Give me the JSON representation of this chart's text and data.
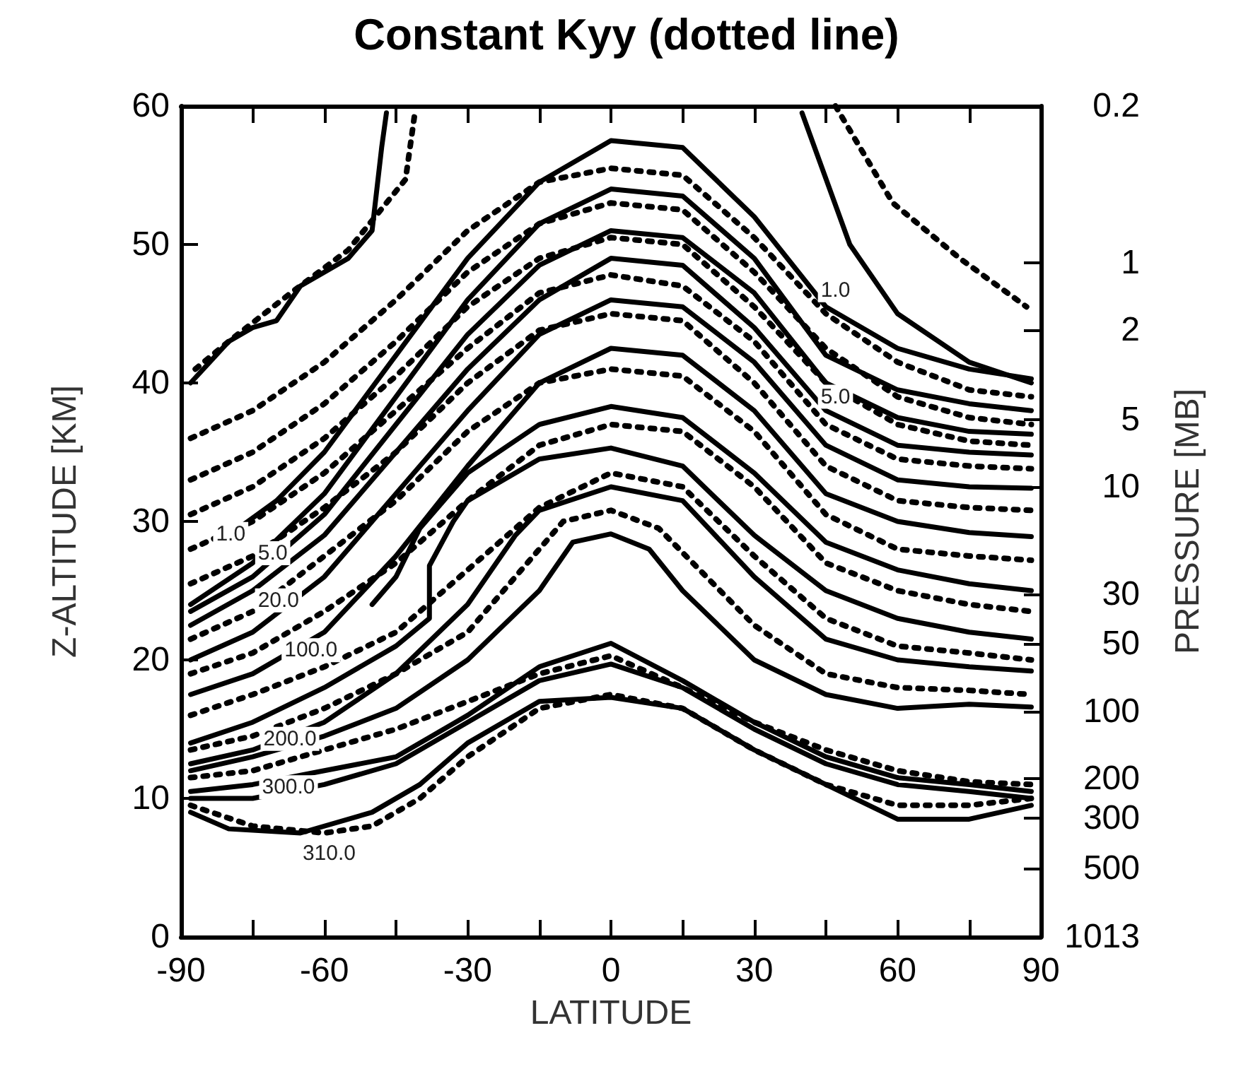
{
  "chart_data": {
    "type": "line",
    "title": "Constant Kyy (dotted line)",
    "xlabel": "LATITUDE",
    "ylabel": "Z-ALTITUDE [KM]",
    "y2label": "PRESSURE [MB]",
    "xlim": [
      -90,
      90
    ],
    "xticks": [
      -90,
      {
        "value": -75,
        "label": null
      },
      -60,
      {
        "value": -45,
        "label": null
      },
      -30,
      {
        "value": -15,
        "label": null
      },
      0,
      {
        "value": 15,
        "label": null
      },
      30,
      {
        "value": 45,
        "label": null
      },
      60,
      {
        "value": 75,
        "label": null
      },
      90
    ],
    "ylim": [
      0,
      60
    ],
    "yticks": [
      0,
      10,
      20,
      30,
      40,
      50,
      60
    ],
    "y2lim": [
      1013,
      0.2
    ],
    "y2ticks": [
      0.2,
      1,
      2,
      5,
      10,
      30,
      50,
      100,
      200,
      300,
      500,
      1013
    ],
    "log": "y2",
    "grid": false,
    "marker": "none",
    "series": [
      {
        "color": "#000000",
        "line_style": "solid",
        "x": [
          -88,
          -80,
          -75,
          -70,
          -65,
          -55,
          -50,
          -48,
          -47
        ],
        "values": [
          40,
          43,
          44,
          44.5,
          47,
          49,
          51,
          57,
          59.5
        ]
      },
      {
        "color": "#000000",
        "line_style": "solid",
        "x": [
          40,
          50,
          60,
          75,
          88
        ],
        "values": [
          59.5,
          50,
          45,
          41.5,
          40
        ]
      },
      {
        "color": "#000000",
        "line_style": "solid",
        "x": [
          -80,
          -70,
          -60,
          -45,
          -30,
          -15,
          0,
          15,
          30,
          45,
          60,
          75,
          88
        ],
        "values": [
          29,
          31.5,
          35,
          42,
          49,
          54.5,
          57.5,
          57,
          52,
          45.5,
          42.5,
          41,
          40.3
        ]
      },
      {
        "color": "#000000",
        "line_style": "solid",
        "x": [
          -88,
          -75,
          -60,
          -45,
          -30,
          -15,
          0,
          15,
          30,
          45,
          60,
          75,
          88
        ],
        "values": [
          24,
          27,
          32,
          39,
          46,
          51.5,
          54,
          53.5,
          49,
          42,
          39.5,
          38.5,
          38
        ]
      },
      {
        "color": "#000000",
        "line_style": "solid",
        "x": [
          -88,
          -75,
          -60,
          -45,
          -30,
          -15,
          0,
          15,
          30,
          45,
          60,
          75,
          88
        ],
        "values": [
          23.5,
          26,
          30.5,
          37,
          43.5,
          48.5,
          51,
          50.5,
          46.5,
          40,
          37.5,
          36.5,
          36.3
        ]
      },
      {
        "color": "#000000",
        "line_style": "solid",
        "x": [
          -88,
          -75,
          -60,
          -45,
          -30,
          -15,
          0,
          15,
          30,
          45,
          60,
          75,
          88
        ],
        "values": [
          22.5,
          25,
          29,
          35,
          41,
          46,
          49,
          48.5,
          44,
          38,
          35.5,
          35,
          34.8
        ]
      },
      {
        "color": "#000000",
        "line_style": "solid",
        "x": [
          -88,
          -75,
          -60,
          -45,
          -30,
          -15,
          0,
          15,
          30,
          45,
          60,
          75,
          88
        ],
        "values": [
          20,
          22,
          26,
          32,
          38,
          43.5,
          46,
          45.5,
          41.5,
          35.5,
          33,
          32.5,
          32.4
        ]
      },
      {
        "color": "#000000",
        "line_style": "solid",
        "x": [
          -88,
          -75,
          -60,
          -45,
          -30,
          -15,
          0,
          15,
          30,
          45,
          60,
          75,
          88
        ],
        "values": [
          17.5,
          19,
          22,
          27.5,
          34,
          40,
          42.5,
          42,
          38,
          32,
          30,
          29.2,
          28.9
        ]
      },
      {
        "color": "#000000",
        "line_style": "solid",
        "x": [
          -50,
          -45,
          -40,
          -30,
          -15,
          0,
          15,
          30,
          45,
          60,
          75,
          88
        ],
        "values": [
          24,
          26,
          29.5,
          33.5,
          37,
          38.3,
          37.5,
          33.5,
          28.5,
          26.5,
          25.5,
          25
        ]
      },
      {
        "color": "#000000",
        "line_style": "solid",
        "x": [
          -88,
          -75,
          -60,
          -45,
          -38,
          -38,
          -33,
          -30,
          -15,
          0,
          15,
          30,
          45,
          60,
          75,
          88
        ],
        "values": [
          14,
          15.5,
          18,
          21,
          23,
          26.8,
          30,
          31.5,
          34.5,
          35.3,
          34,
          29,
          25,
          23,
          22,
          21.5
        ]
      },
      {
        "color": "#000000",
        "line_style": "solid",
        "x": [
          -88,
          -75,
          -60,
          -45,
          -30,
          -20,
          -15,
          0,
          15,
          30,
          45,
          60,
          75,
          88
        ],
        "values": [
          12.5,
          13.5,
          15.5,
          19,
          24,
          29,
          30.8,
          32.5,
          31.5,
          26,
          21.5,
          20,
          19.5,
          19.2
        ]
      },
      {
        "color": "#000000",
        "line_style": "solid",
        "x": [
          -88,
          -75,
          -60,
          -45,
          -30,
          -15,
          -8,
          0,
          8,
          15,
          30,
          45,
          60,
          75,
          88
        ],
        "values": [
          12,
          13,
          14.5,
          16.5,
          20,
          25,
          28.5,
          29.1,
          28,
          25,
          20,
          17.5,
          16.5,
          16.8,
          16.6
        ]
      },
      {
        "color": "#000000",
        "line_style": "solid",
        "x": [
          -88,
          -75,
          -60,
          -45,
          -30,
          -15,
          0,
          15,
          30,
          45,
          60,
          75,
          88
        ],
        "values": [
          10.5,
          11,
          12,
          13,
          16,
          19.5,
          21.2,
          18.5,
          15.5,
          13,
          11.5,
          11,
          10.5
        ]
      },
      {
        "color": "#000000",
        "line_style": "solid",
        "x": [
          -88,
          -75,
          -60,
          -45,
          -30,
          -15,
          0,
          15,
          30,
          45,
          60,
          75,
          88
        ],
        "values": [
          10,
          10,
          11,
          12.5,
          15.5,
          18.5,
          19.7,
          18,
          15,
          12.5,
          11,
          10.5,
          10
        ]
      },
      {
        "color": "#000000",
        "line_style": "solid",
        "x": [
          -88,
          -80,
          -65,
          -50,
          -40,
          -30,
          -15,
          0,
          15,
          30,
          45,
          60,
          75,
          88
        ],
        "values": [
          9,
          7.8,
          7.5,
          9,
          11,
          14,
          17,
          17.3,
          16.5,
          13.5,
          11,
          8.5,
          8.5,
          9.5
        ]
      },
      {
        "color": "#000000",
        "line_style": "dotted",
        "x": [
          -87,
          -80,
          -67,
          -55,
          -43,
          -41
        ],
        "values": [
          41,
          43,
          46.5,
          49.6,
          54.7,
          59.6
        ]
      },
      {
        "color": "#000000",
        "line_style": "dotted",
        "x": [
          47,
          59,
          73,
          87
        ],
        "values": [
          60,
          53,
          49,
          45.5
        ]
      },
      {
        "color": "#000000",
        "line_style": "dotted",
        "x": [
          -88,
          -75,
          -60,
          -45,
          -30,
          -15,
          0,
          15,
          30,
          45,
          60,
          75,
          88
        ],
        "values": [
          36,
          38,
          41.5,
          46,
          51,
          54.5,
          55.5,
          55,
          50.5,
          45,
          41.5,
          39.5,
          39
        ]
      },
      {
        "color": "#000000",
        "line_style": "dotted",
        "x": [
          -88,
          -75,
          -60,
          -45,
          -30,
          -15,
          0,
          15,
          30,
          45,
          60,
          75,
          88
        ],
        "values": [
          33,
          35,
          38.5,
          43,
          48,
          51.5,
          53,
          52.5,
          48,
          42.5,
          39,
          37.5,
          37
        ]
      },
      {
        "color": "#000000",
        "line_style": "dotted",
        "x": [
          -88,
          -75,
          -60,
          -45,
          -30,
          -15,
          0,
          15,
          30,
          45,
          60,
          75,
          88
        ],
        "values": [
          30.5,
          32.5,
          36,
          40.5,
          45.5,
          49,
          50.5,
          50,
          45.5,
          40,
          37,
          35.8,
          35.5
        ]
      },
      {
        "color": "#000000",
        "line_style": "dotted",
        "x": [
          -88,
          -75,
          -60,
          -45,
          -30,
          -15,
          0,
          15,
          30,
          45,
          60,
          75,
          88
        ],
        "values": [
          28,
          30,
          33.5,
          38,
          42.5,
          46.5,
          47.8,
          47,
          43,
          37,
          34.5,
          34,
          33.8
        ]
      },
      {
        "color": "#000000",
        "line_style": "dotted",
        "x": [
          -88,
          -75,
          -60,
          -45,
          -30,
          -15,
          0,
          15,
          30,
          45,
          60,
          75,
          88
        ],
        "values": [
          25.5,
          27.5,
          31,
          35,
          40,
          43.8,
          45,
          44.5,
          40,
          34,
          31.5,
          31,
          30.8
        ]
      },
      {
        "color": "#000000",
        "line_style": "dotted",
        "x": [
          -88,
          -75,
          -60,
          -45,
          -30,
          -15,
          0,
          15,
          30,
          45,
          60,
          75,
          88
        ],
        "values": [
          21.5,
          23.5,
          27.5,
          31.5,
          36.5,
          40,
          41,
          40.5,
          36.5,
          30.5,
          28,
          27.5,
          27.2
        ]
      },
      {
        "color": "#000000",
        "line_style": "dotted",
        "x": [
          -88,
          -75,
          -60,
          -45,
          -30,
          -15,
          0,
          15,
          30,
          45,
          60,
          75,
          88
        ],
        "values": [
          19,
          20.5,
          23.5,
          27,
          31.5,
          35.5,
          37,
          36.5,
          32.5,
          27,
          25,
          24,
          23.5
        ]
      },
      {
        "color": "#000000",
        "line_style": "dotted",
        "x": [
          -88,
          -75,
          -60,
          -45,
          -30,
          -15,
          0,
          15,
          30,
          45,
          60,
          75,
          88
        ],
        "values": [
          16,
          17.5,
          19.5,
          22,
          26.5,
          31,
          33.5,
          32.5,
          27.5,
          23,
          21,
          20.5,
          20
        ]
      },
      {
        "color": "#000000",
        "line_style": "dotted",
        "x": [
          -88,
          -75,
          -60,
          -45,
          -30,
          -20,
          -10,
          0,
          10,
          20,
          30,
          45,
          60,
          75,
          88
        ],
        "values": [
          13.5,
          14.5,
          16.5,
          19,
          22,
          26,
          30,
          30.8,
          29.5,
          26,
          22.5,
          19,
          18,
          17.8,
          17.5
        ]
      },
      {
        "color": "#000000",
        "line_style": "dotted",
        "x": [
          -88,
          -75,
          -60,
          -45,
          -30,
          -15,
          0,
          15,
          30,
          45,
          60,
          75,
          88
        ],
        "values": [
          11.5,
          12,
          13.5,
          15,
          17,
          19,
          20.3,
          18,
          15.5,
          13.5,
          12,
          11.2,
          11
        ]
      },
      {
        "color": "#000000",
        "line_style": "dotted",
        "x": [
          -88,
          -75,
          -60,
          -50,
          -40,
          -30,
          -15,
          0,
          15,
          30,
          45,
          60,
          75,
          88
        ],
        "values": [
          9.5,
          8,
          7.5,
          8,
          10,
          13,
          16.5,
          17.5,
          16.5,
          13.5,
          11,
          9.5,
          9.5,
          10
        ]
      }
    ],
    "annotations": [
      {
        "text": "1.0",
        "x": -79.6,
        "y": 29.1
      },
      {
        "text": "5.0",
        "x": -70.8,
        "y": 27.7
      },
      {
        "text": "20.0",
        "x": -69.6,
        "y": 24.3
      },
      {
        "text": "100.0",
        "x": -62.8,
        "y": 20.7
      },
      {
        "text": "200.0",
        "x": -67.2,
        "y": 14.3
      },
      {
        "text": "300.0",
        "x": -67.5,
        "y": 10.8
      },
      {
        "text": "310.0",
        "x": -59,
        "y": 6
      },
      {
        "text": "1.0",
        "x": 47,
        "y": 46.7
      },
      {
        "text": "5.0",
        "x": 47,
        "y": 39
      }
    ]
  }
}
